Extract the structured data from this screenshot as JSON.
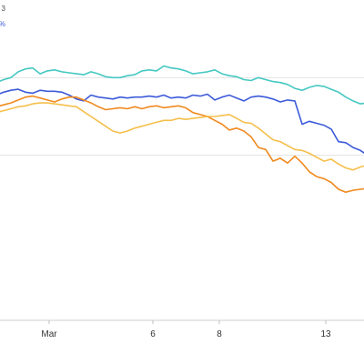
{
  "chart_data": {
    "type": "line",
    "title": "",
    "xlabel": "",
    "ylabel": "",
    "grid": true,
    "x_ticks": [
      "Mar",
      "6",
      "8",
      "13"
    ],
    "legend_fragments": [
      {
        "text": "3",
        "color": "#4a4a4a"
      },
      {
        "text": "95%",
        "color": "#3d5bd9"
      }
    ],
    "series": [
      {
        "color": "#45c8c2",
        "values": [
          -8.5,
          -8.2,
          -8.0,
          -7.4,
          -7.1,
          -7.0,
          -7.6,
          -7.3,
          -7.2,
          -7.4,
          -7.5,
          -7.6,
          -7.7,
          -7.4,
          -7.6,
          -7.9,
          -8.0,
          -8.0,
          -7.8,
          -7.7,
          -7.3,
          -7.2,
          -7.3,
          -6.8,
          -7.0,
          -7.1,
          -7.3,
          -7.6,
          -7.5,
          -7.4,
          -7.2,
          -7.6,
          -7.8,
          -7.9,
          -8.2,
          -8.3,
          -8.0,
          -8.2,
          -8.4,
          -8.5,
          -8.7,
          -9.1,
          -9.3,
          -9.0,
          -8.8,
          -8.9,
          -9.2,
          -9.5,
          -10.0,
          -10.4,
          -10.7,
          -10.6
        ]
      },
      {
        "color": "#3d5bd9",
        "values": [
          -9.8,
          -9.5,
          -9.3,
          -9.2,
          -9.5,
          -9.6,
          -9.3,
          -9.4,
          -9.4,
          -9.5,
          -9.8,
          -10.2,
          -10.4,
          -9.8,
          -10.0,
          -10.1,
          -10.2,
          -10.0,
          -10.1,
          -10.0,
          -10.0,
          -9.9,
          -10.0,
          -9.8,
          -10.1,
          -10.0,
          -10.1,
          -9.8,
          -9.9,
          -9.7,
          -10.3,
          -10.0,
          -9.8,
          -10.1,
          -10.4,
          -10.0,
          -9.9,
          -10.0,
          -10.2,
          -10.5,
          -10.3,
          -10.4,
          -12.8,
          -12.5,
          -12.7,
          -12.9,
          -13.3,
          -14.6,
          -14.7,
          -15.2,
          -15.5,
          -16.0
        ]
      },
      {
        "color": "#f08a1f",
        "values": [
          -11.0,
          -10.8,
          -10.6,
          -10.3,
          -10.0,
          -9.9,
          -10.1,
          -10.3,
          -10.5,
          -10.2,
          -10.0,
          -10.0,
          -10.3,
          -10.6,
          -11.0,
          -11.3,
          -11.2,
          -11.1,
          -11.2,
          -11.0,
          -11.2,
          -11.0,
          -10.9,
          -11.1,
          -11.0,
          -10.9,
          -11.1,
          -11.6,
          -11.8,
          -12.0,
          -12.4,
          -12.8,
          -13.4,
          -13.2,
          -13.5,
          -14.1,
          -15.2,
          -15.4,
          -16.6,
          -16.3,
          -16.8,
          -16.1,
          -16.8,
          -17.7,
          -18.2,
          -18.4,
          -18.8,
          -19.5,
          -19.8,
          -19.6,
          -19.5,
          -19.4
        ]
      },
      {
        "color": "#f5bf4c",
        "values": [
          -11.6,
          -11.4,
          -11.2,
          -11.0,
          -10.9,
          -10.7,
          -10.6,
          -10.6,
          -10.7,
          -10.8,
          -10.9,
          -11.0,
          -11.5,
          -12.0,
          -12.5,
          -13.0,
          -13.5,
          -13.7,
          -13.5,
          -13.2,
          -13.0,
          -12.8,
          -12.6,
          -12.4,
          -12.4,
          -12.2,
          -12.3,
          -12.2,
          -12.1,
          -12.0,
          -12.0,
          -11.9,
          -11.8,
          -12.2,
          -12.6,
          -12.7,
          -13.2,
          -13.8,
          -14.4,
          -14.6,
          -15.0,
          -15.4,
          -15.5,
          -15.8,
          -16.2,
          -16.6,
          -16.4,
          -16.9,
          -17.3,
          -17.5,
          -17.2,
          -17.0
        ]
      }
    ]
  }
}
